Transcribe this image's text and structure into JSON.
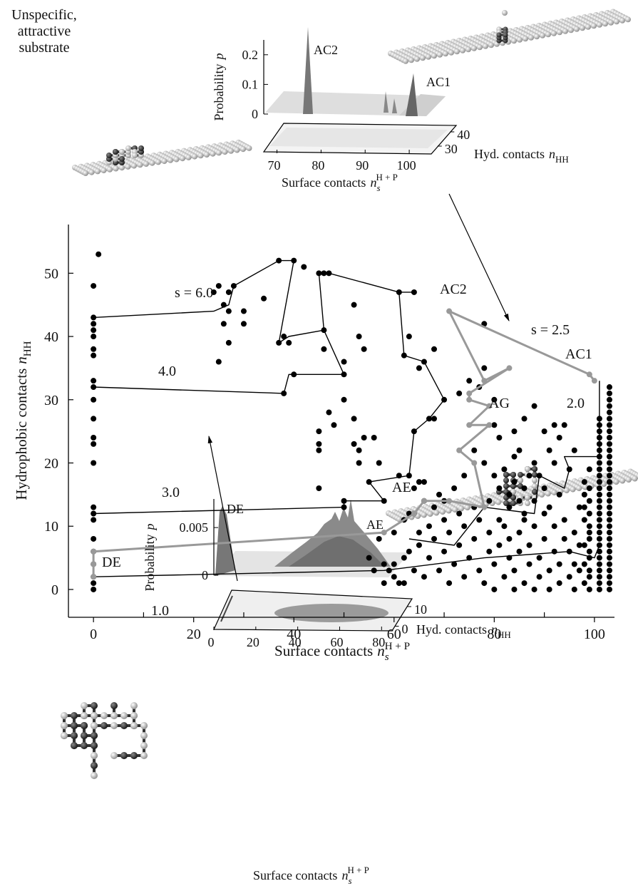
{
  "caption": [
    "Unspecific,",
    "attractive",
    "substrate"
  ],
  "chart_data": [
    {
      "type": "scatter",
      "xlabel": {
        "text": "Surface contacts",
        "symbol": "n",
        "sub": "s",
        "sup": "H + P"
      },
      "ylabel": {
        "text": "Hydrophobic contacts",
        "symbol": "n",
        "sub": "HH"
      },
      "xlim": [
        -5,
        104
      ],
      "ylim": [
        -4.4,
        57.7
      ],
      "xticks": [
        0,
        20,
        40,
        60,
        80,
        100
      ],
      "xminor": [
        10,
        30,
        50,
        70,
        90
      ],
      "yticks": [
        0,
        10,
        20,
        30,
        40,
        50
      ],
      "annotations": [
        "s = 6.0",
        "4.0",
        "3.0",
        "1.0",
        "2.0",
        "s = 2.5",
        "AC2",
        "AC1",
        "AG",
        "AE",
        "DE"
      ],
      "series": [
        {
          "type": "line",
          "color": "#000000",
          "x": [
            0,
            24,
            27,
            28,
            37,
            40,
            37,
            39,
            46,
            45,
            47,
            61,
            64
          ],
          "values": [
            43,
            44,
            45,
            48,
            52,
            52,
            39,
            40,
            41,
            50,
            50,
            47,
            47
          ]
        },
        {
          "type": "line",
          "color": "#000000",
          "x": [
            0,
            38,
            39,
            50,
            46
          ],
          "values": [
            32,
            31,
            34,
            34,
            41
          ]
        },
        {
          "type": "line",
          "color": "#000000",
          "x": [
            0,
            50,
            50,
            58,
            55,
            63,
            64,
            67,
            70,
            66,
            62,
            61
          ],
          "values": [
            12,
            13,
            14,
            14,
            17,
            18,
            25,
            27,
            30,
            36,
            37,
            47
          ]
        },
        {
          "type": "line",
          "color": "#000000",
          "x": [
            101,
            101,
            94,
            95,
            94,
            89,
            88,
            78,
            72,
            63
          ],
          "values": [
            33,
            21,
            21,
            19,
            16,
            18,
            12,
            13,
            7,
            8
          ]
        },
        {
          "type": "line",
          "color": "#000000",
          "x": [
            0,
            58,
            78,
            95,
            100,
            101
          ],
          "values": [
            2,
            3,
            5,
            6,
            5,
            7
          ]
        },
        {
          "type": "scatter",
          "color": "#000000",
          "x": [
            0,
            0,
            0,
            0,
            0,
            0,
            0,
            0,
            0,
            0,
            0,
            0,
            0,
            0,
            0,
            0,
            0,
            0,
            0,
            0,
            0,
            0,
            0
          ],
          "values": [
            0,
            1,
            2,
            4,
            6,
            8,
            11,
            12,
            13,
            20,
            23,
            24,
            27,
            30,
            32,
            33,
            37,
            38,
            40,
            41,
            42,
            43,
            48
          ]
        },
        {
          "type": "scatter",
          "color": "#000000",
          "x": [
            101,
            101,
            101,
            101,
            101,
            101,
            101,
            101,
            101,
            101,
            101,
            101,
            101,
            101,
            101,
            101,
            101,
            101,
            101,
            101,
            101,
            101,
            101,
            101,
            101,
            101,
            101,
            101
          ],
          "values": [
            0,
            1,
            2,
            3,
            4,
            5,
            6,
            7,
            8,
            9,
            10,
            11,
            12,
            13,
            14,
            15,
            16,
            17,
            18,
            19,
            20,
            21,
            22,
            23,
            24,
            25,
            26,
            27
          ]
        },
        {
          "type": "scatter",
          "color": "#000000",
          "x": [
            103,
            103,
            103,
            103,
            103,
            103,
            103,
            103,
            103,
            103,
            103,
            103,
            103,
            103,
            103,
            103,
            103,
            103,
            103,
            103,
            103,
            103,
            103,
            103,
            103,
            103,
            103,
            103,
            103,
            103,
            103,
            103,
            103
          ],
          "values": [
            0,
            1,
            2,
            3,
            4,
            5,
            6,
            7,
            8,
            9,
            10,
            11,
            12,
            13,
            14,
            15,
            16,
            17,
            18,
            19,
            20,
            21,
            22,
            23,
            24,
            25,
            26,
            27,
            28,
            29,
            30,
            31,
            32
          ]
        },
        {
          "type": "scatter",
          "color": "#000000",
          "x": [
            99,
            99,
            99,
            99,
            99,
            99,
            99,
            99,
            99,
            99,
            99,
            99
          ],
          "values": [
            0,
            2,
            3,
            5,
            6,
            8,
            9,
            10,
            12,
            14,
            16,
            19
          ]
        },
        {
          "type": "scatter",
          "color": "#000000",
          "x": [
            98,
            98,
            98,
            98,
            98,
            98,
            98
          ],
          "values": [
            1,
            4,
            7,
            11,
            13,
            15,
            17
          ]
        },
        {
          "type": "scatter",
          "color": "#000000",
          "x": [
            1,
            24,
            25,
            27,
            28,
            26,
            27,
            26,
            30,
            30,
            27,
            25,
            34,
            37,
            40,
            42,
            38,
            39,
            37,
            38,
            40,
            45,
            46,
            47,
            46,
            46,
            50,
            50,
            50,
            52,
            53,
            54,
            47,
            45,
            45,
            45,
            48,
            52,
            54,
            52,
            53,
            53,
            56,
            57,
            45,
            50,
            50,
            55,
            58,
            61,
            64,
            62,
            63,
            65,
            66,
            68,
            67,
            68,
            70,
            64,
            63,
            61,
            64,
            66,
            65,
            73,
            75,
            77,
            78,
            78,
            80,
            80,
            81,
            84,
            86,
            85,
            84,
            88,
            90,
            92,
            93,
            91,
            94,
            96,
            95,
            93,
            87,
            86,
            88,
            90,
            92,
            89,
            91,
            86,
            83,
            84,
            82,
            80,
            78,
            76,
            74,
            72,
            70,
            68,
            66,
            64,
            62,
            60,
            57,
            55,
            58,
            59,
            60,
            61,
            62,
            60,
            62,
            64,
            63,
            65,
            66,
            67,
            68,
            69,
            70,
            71,
            71,
            72,
            73,
            74,
            74,
            75,
            76,
            77,
            77,
            78,
            79,
            79,
            80,
            80,
            81,
            81,
            82,
            82,
            83,
            83,
            84,
            84,
            85,
            85,
            86,
            86,
            87,
            87,
            88,
            88,
            89,
            89,
            90,
            90,
            91,
            91,
            92,
            92,
            93,
            93,
            94,
            94,
            95,
            95,
            96,
            96,
            96,
            97,
            97,
            97,
            76,
            73,
            70,
            67,
            65,
            63,
            69,
            56,
            58,
            83,
            85,
            79,
            81,
            88
          ],
          "values": [
            53,
            47,
            48,
            47,
            48,
            45,
            44,
            42,
            44,
            42,
            39,
            36,
            46,
            52,
            52,
            51,
            40,
            39,
            39,
            31,
            34,
            50,
            50,
            50,
            41,
            38,
            34,
            36,
            30,
            45,
            40,
            38,
            28,
            25,
            23,
            22,
            26,
            27,
            24,
            23,
            22,
            20,
            24,
            20,
            16,
            13,
            14,
            17,
            14,
            47,
            47,
            37,
            40,
            35,
            36,
            38,
            27,
            27,
            30,
            25,
            18,
            18,
            16,
            17,
            17,
            31,
            33,
            32,
            35,
            42,
            30,
            26,
            24,
            25,
            27,
            22,
            21,
            29,
            25,
            26,
            24,
            22,
            26,
            22,
            19,
            15,
            18,
            16,
            14,
            16,
            20,
            18,
            13,
            11,
            13,
            17,
            19,
            18,
            20,
            22,
            18,
            16,
            14,
            13,
            14,
            12,
            11,
            9,
            8,
            5,
            4,
            3,
            2,
            1,
            1,
            4,
            5,
            3,
            6,
            7,
            2,
            5,
            8,
            3,
            6,
            9,
            1,
            4,
            7,
            10,
            2,
            5,
            8,
            11,
            3,
            1,
            6,
            9,
            0,
            4,
            7,
            11,
            2,
            10,
            5,
            8,
            0,
            3,
            6,
            9,
            1,
            12,
            4,
            7,
            0,
            10,
            2,
            5,
            8,
            12,
            0,
            3,
            6,
            10,
            1,
            4,
            8,
            11,
            2,
            6,
            0,
            4,
            9,
            3,
            7,
            13,
            13,
            12,
            11,
            10,
            9,
            12,
            15,
            3,
            1,
            15,
            14,
            14,
            16,
            20
          ]
        },
        {
          "type": "line",
          "color": "#999999",
          "markers": true,
          "x": [
            0,
            0,
            0,
            58,
            64,
            66,
            71,
            78,
            76,
            73,
            79,
            75,
            79,
            75,
            75,
            83,
            78,
            71,
            99,
            100
          ],
          "values": [
            2,
            4,
            6,
            9,
            12,
            14,
            14,
            13,
            20,
            22,
            26,
            26,
            29,
            30,
            31,
            35,
            33,
            44,
            34,
            33
          ]
        }
      ]
    },
    {
      "type": "surface",
      "zlabel": {
        "text": "Probability",
        "symbol": "p"
      },
      "xlabel": {
        "text": "Surface contacts",
        "symbol": "n",
        "sub": "s",
        "sup": "H + P"
      },
      "ylabel": {
        "text": "Hyd. contacts",
        "symbol": "n",
        "sub": "HH"
      },
      "xlim": [
        67,
        105
      ],
      "xticks": [
        70,
        80,
        90,
        100
      ],
      "ylim": [
        25,
        45
      ],
      "yticks": [
        30,
        40
      ],
      "zlim": [
        0,
        0.25
      ],
      "zticks": [
        0,
        0.1,
        0.2
      ],
      "annotations": [
        "AC2",
        "AC1"
      ]
    },
    {
      "type": "surface",
      "zlabel": {
        "text": "Probability",
        "symbol": "p"
      },
      "xlabel": {
        "text": "Surface contacts",
        "symbol": "n",
        "sub": "s",
        "sup": "H + P"
      },
      "ylabel": {
        "text": "Hyd. contacts",
        "symbol": "n",
        "sub": "HH"
      },
      "xlim": [
        0,
        85
      ],
      "xticks": [
        0,
        20,
        40,
        60,
        80
      ],
      "ylim": [
        -2,
        14
      ],
      "yticks": [
        0,
        10
      ],
      "zlim": [
        0,
        0.008
      ],
      "zticks": [
        0,
        0.005
      ],
      "annotations": [
        "DE",
        "AE"
      ]
    }
  ]
}
